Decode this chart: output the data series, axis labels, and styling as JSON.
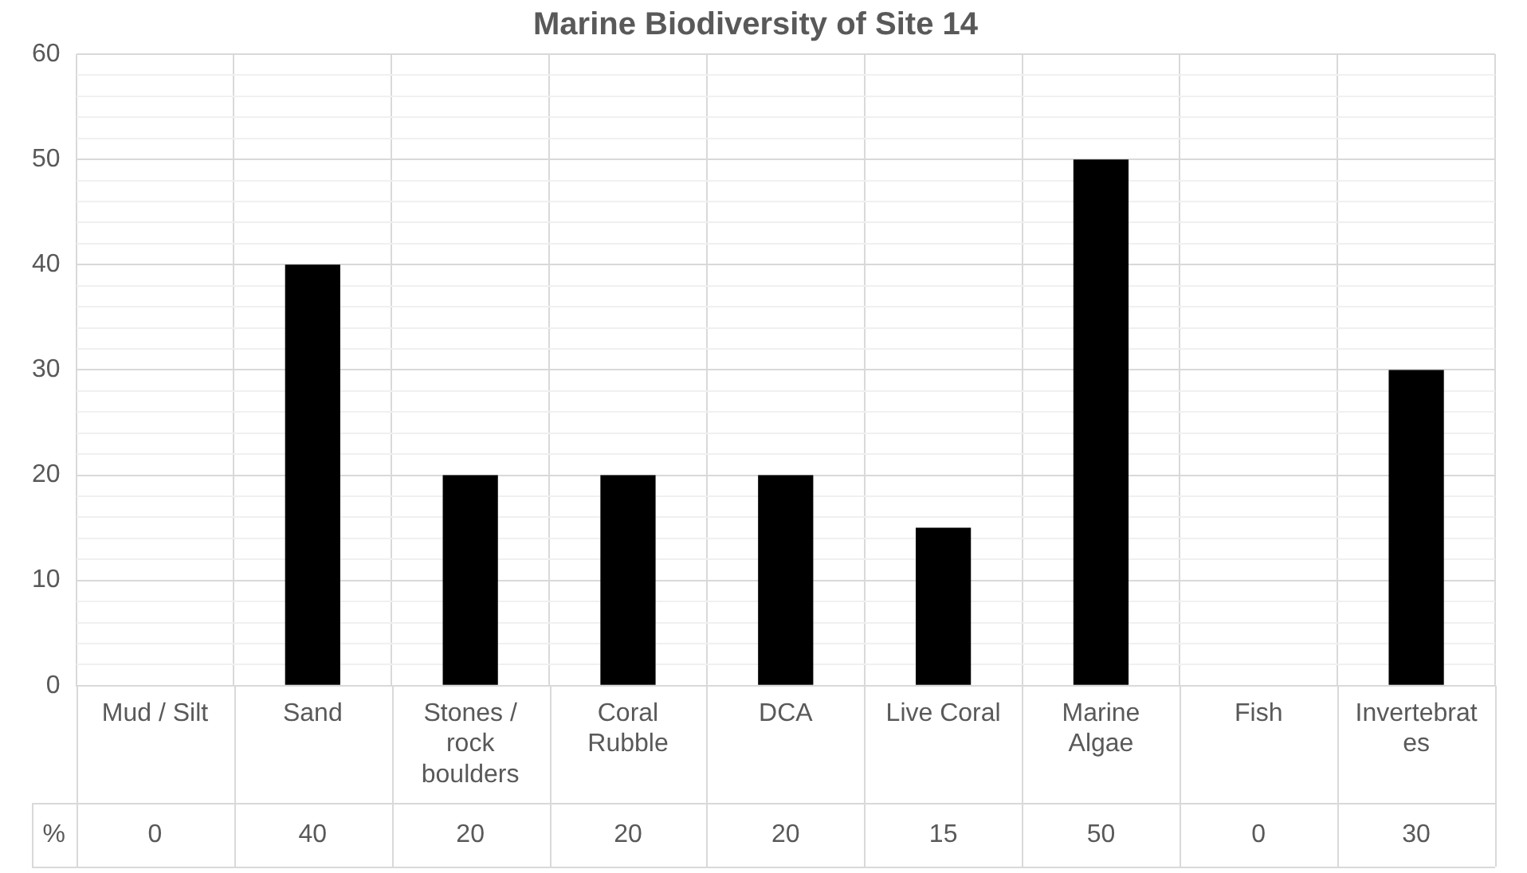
{
  "chart_data": {
    "type": "bar",
    "title": "Marine Biodiversity of Site 14",
    "categories": [
      "Mud / Silt",
      "Sand",
      "Stones / rock boulders",
      "Coral Rubble",
      "DCA",
      "Live Coral",
      "Marine Algae",
      "Fish",
      "Invertebrates"
    ],
    "series": [
      {
        "name": "%",
        "color": "#000000",
        "values": [
          0,
          40,
          20,
          20,
          20,
          15,
          50,
          0,
          30
        ]
      }
    ],
    "ylim": [
      0,
      60
    ],
    "yticks": [
      0,
      {
        "value": 2,
        "label": null
      },
      {
        "value": 4,
        "label": null
      },
      {
        "value": 6,
        "label": null
      },
      {
        "value": 8,
        "label": null
      },
      10,
      {
        "value": 12,
        "label": null
      },
      {
        "value": 14,
        "label": null
      },
      {
        "value": 16,
        "label": null
      },
      {
        "value": 18,
        "label": null
      },
      20,
      {
        "value": 22,
        "label": null
      },
      {
        "value": 24,
        "label": null
      },
      {
        "value": 26,
        "label": null
      },
      {
        "value": 28,
        "label": null
      },
      30,
      {
        "value": 32,
        "label": null
      },
      {
        "value": 34,
        "label": null
      },
      {
        "value": 36,
        "label": null
      },
      {
        "value": 38,
        "label": null
      },
      40,
      {
        "value": 42,
        "label": null
      },
      {
        "value": 44,
        "label": null
      },
      {
        "value": 46,
        "label": null
      },
      {
        "value": 48,
        "label": null
      },
      50,
      {
        "value": 52,
        "label": null
      },
      {
        "value": 54,
        "label": null
      },
      {
        "value": 56,
        "label": null
      },
      {
        "value": 58,
        "label": null
      },
      60
    ],
    "grid": true,
    "legend": false,
    "data_labels": true
  }
}
